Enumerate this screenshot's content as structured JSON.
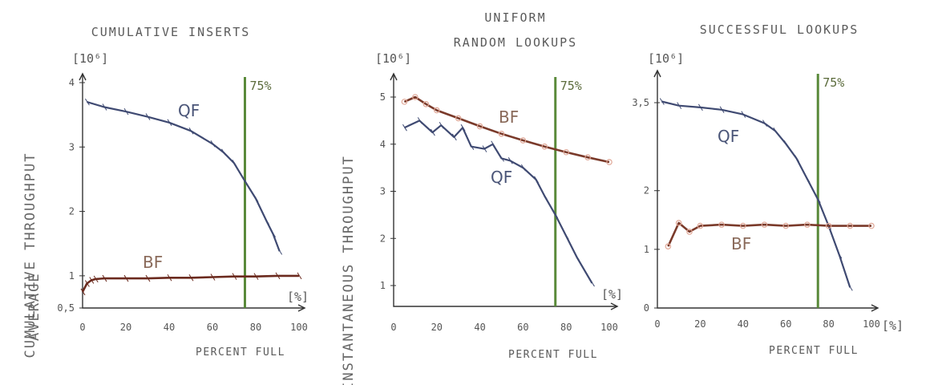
{
  "shared_ylabel_top": "AVERAGE",
  "chart_data": [
    {
      "type": "line",
      "title": [
        "CUMULATIVE INSERTS"
      ],
      "xlabel": "PERCENT FULL",
      "ylabel": "CUMULATIVE THROUGHPUT",
      "yunit": "[10⁶]",
      "xunit": "[%]",
      "xlim": [
        0,
        100
      ],
      "ylim": [
        0.5,
        4.1
      ],
      "xticks": [
        0,
        20,
        40,
        60,
        80,
        100
      ],
      "yticks": [
        4,
        3,
        2,
        1,
        0.5
      ],
      "yticklabels": [
        "4",
        "3",
        "2",
        "1",
        "0,5"
      ],
      "marker_x": 75,
      "marker_label": "75%",
      "marker_color": "#5a8a3a",
      "series": [
        {
          "name": "QF",
          "color": "#3f4a72",
          "x": [
            2,
            10,
            20,
            30,
            40,
            50,
            60,
            65,
            70,
            75,
            80,
            85,
            88,
            91
          ],
          "y": [
            3.7,
            3.62,
            3.55,
            3.47,
            3.38,
            3.25,
            3.05,
            2.92,
            2.75,
            2.47,
            2.2,
            1.85,
            1.65,
            1.38
          ]
        },
        {
          "name": "BF",
          "color": "#6b2a1e",
          "x": [
            0,
            2,
            4,
            6,
            10,
            20,
            30,
            40,
            50,
            60,
            70,
            80,
            90,
            100
          ],
          "y": [
            0.75,
            0.88,
            0.93,
            0.95,
            0.96,
            0.96,
            0.96,
            0.97,
            0.97,
            0.98,
            0.99,
            0.99,
            1.0,
            1.0
          ]
        }
      ]
    },
    {
      "type": "line",
      "title": [
        "UNIFORM",
        "RANDOM LOOKUPS"
      ],
      "xlabel": "PERCENT FULL",
      "ylabel": "INSTANTANEOUS THROUGHPUT",
      "yunit": "[10⁶]",
      "xunit": "[%]",
      "xlim": [
        0,
        100
      ],
      "ylim": [
        0.8,
        5.3
      ],
      "xticks": [
        0,
        20,
        40,
        60,
        80,
        100
      ],
      "yticks": [
        5,
        4,
        3,
        2,
        1
      ],
      "yticklabels": [
        "5",
        "4",
        "3",
        "2",
        "1"
      ],
      "marker_x": 75,
      "marker_label": "75%",
      "marker_color": "#5a8a3a",
      "series": [
        {
          "name": "BF",
          "color": "#7a3a2a",
          "x": [
            5,
            10,
            15,
            20,
            30,
            40,
            50,
            60,
            70,
            80,
            90,
            100
          ],
          "y": [
            4.9,
            5.0,
            4.85,
            4.72,
            4.55,
            4.38,
            4.22,
            4.08,
            3.95,
            3.83,
            3.72,
            3.62
          ]
        },
        {
          "name": "QF",
          "color": "#3f4a72",
          "x": [
            5,
            12,
            18,
            22,
            28,
            32,
            36,
            42,
            46,
            50,
            54,
            60,
            66,
            70,
            75,
            80,
            85,
            92
          ],
          "y": [
            4.35,
            4.5,
            4.25,
            4.4,
            4.15,
            4.35,
            3.95,
            3.9,
            4.0,
            3.7,
            3.65,
            3.5,
            3.25,
            2.9,
            2.5,
            2.05,
            1.6,
            1.05
          ]
        }
      ]
    },
    {
      "type": "line",
      "title": [
        "SUCCESSFUL LOOKUPS"
      ],
      "xlabel": "PERCENT FULL",
      "ylabel": "",
      "yunit": "[10⁶]",
      "xunit": "[%]",
      "xlim": [
        0,
        100
      ],
      "ylim": [
        0,
        4.1
      ],
      "xticks": [
        0,
        20,
        40,
        60,
        80,
        100
      ],
      "yticks": [
        3.5,
        2,
        1,
        0
      ],
      "yticklabels": [
        "3,5",
        "2",
        "1",
        "0"
      ],
      "marker_x": 75,
      "marker_label": "75%",
      "marker_color": "#5a8a3a",
      "series": [
        {
          "name": "QF",
          "color": "#3f4a72",
          "x": [
            2,
            10,
            20,
            30,
            40,
            50,
            55,
            60,
            65,
            70,
            75,
            80,
            85,
            90
          ],
          "y": [
            3.52,
            3.45,
            3.42,
            3.38,
            3.3,
            3.15,
            3.02,
            2.8,
            2.55,
            2.2,
            1.85,
            1.4,
            0.9,
            0.35
          ]
        },
        {
          "name": "BF",
          "color": "#7a3a2a",
          "x": [
            5,
            10,
            15,
            20,
            30,
            40,
            50,
            60,
            70,
            80,
            90,
            100
          ],
          "y": [
            1.05,
            1.45,
            1.3,
            1.4,
            1.42,
            1.4,
            1.42,
            1.4,
            1.42,
            1.4,
            1.4,
            1.4
          ]
        }
      ]
    }
  ]
}
